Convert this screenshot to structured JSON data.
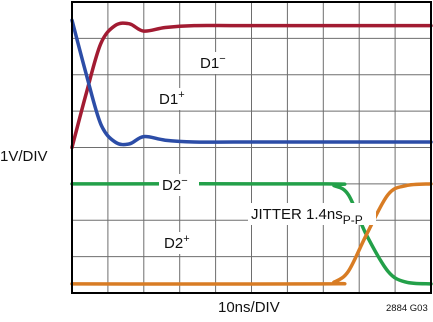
{
  "chart_data": {
    "type": "line",
    "xlabel": "10ns/DIV",
    "ylabel": "1V/DIV",
    "figure_id": "2884 G03",
    "xlim": [
      0,
      10
    ],
    "ylim": [
      0,
      8
    ],
    "grid": true,
    "series": [
      {
        "name": "D1−",
        "color": "#a21b32",
        "x": [
          0,
          0.4,
          0.8,
          1.2,
          1.6,
          2.0,
          2.6,
          3.4,
          4.5,
          6,
          10
        ],
        "y": [
          4.0,
          5.5,
          6.85,
          7.35,
          7.4,
          7.2,
          7.3,
          7.35,
          7.35,
          7.35,
          7.35
        ]
      },
      {
        "name": "D1+",
        "color": "#2c4da7",
        "x": [
          0,
          0.4,
          0.8,
          1.2,
          1.6,
          2.0,
          2.6,
          3.4,
          4.5,
          6,
          10
        ],
        "y": [
          7.5,
          6.0,
          4.65,
          4.15,
          4.1,
          4.3,
          4.2,
          4.15,
          4.15,
          4.15,
          4.15
        ]
      },
      {
        "name": "D2−",
        "color": "#23a049",
        "x": [
          0,
          7.0,
          7.3,
          7.7,
          8.2,
          8.8,
          9.3,
          10
        ],
        "y": [
          3.0,
          3.0,
          2.95,
          2.7,
          1.6,
          0.6,
          0.3,
          0.25
        ]
      },
      {
        "name": "D2+",
        "color": "#d87c24",
        "x": [
          0,
          7.0,
          7.3,
          7.7,
          8.2,
          8.8,
          9.3,
          10
        ],
        "y": [
          0.25,
          0.25,
          0.3,
          0.6,
          1.6,
          2.7,
          2.95,
          3.0
        ]
      }
    ],
    "annotations": [
      {
        "text": "D1",
        "sup": "−"
      },
      {
        "text": "D1",
        "sup": "+"
      },
      {
        "text": "D2",
        "sup": "−"
      },
      {
        "text": "D2",
        "sup": "+"
      },
      {
        "text": "JITTER 1.4ns",
        "sub": "P-P"
      }
    ]
  }
}
